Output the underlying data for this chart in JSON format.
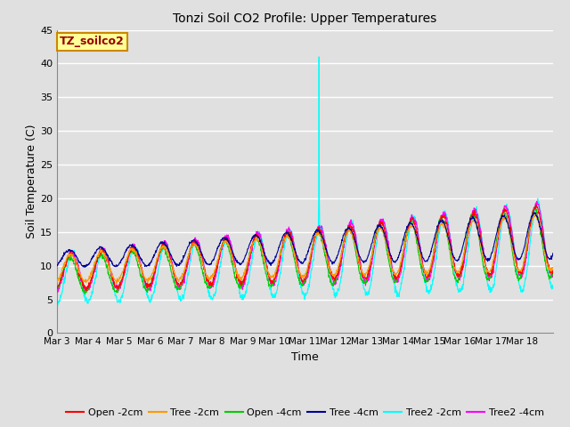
{
  "title": "Tonzi Soil CO2 Profile: Upper Temperatures",
  "xlabel": "Time",
  "ylabel": "Soil Temperature (C)",
  "ylim": [
    0,
    45
  ],
  "yticks": [
    0,
    5,
    10,
    15,
    20,
    25,
    30,
    35,
    40,
    45
  ],
  "x_labels": [
    "Mar 3",
    "Mar 4",
    "Mar 5",
    "Mar 6",
    "Mar 7",
    "Mar 8",
    "Mar 9",
    "Mar 10",
    "Mar 11",
    "Mar 12",
    "Mar 13",
    "Mar 14",
    "Mar 15",
    "Mar 16",
    "Mar 17",
    "Mar 18"
  ],
  "background_color": "#e0e0e0",
  "plot_bg_color": "#e0e0e0",
  "grid_color": "#ffffff",
  "series_colors": {
    "Open -2cm": "#ff0000",
    "Tree -2cm": "#ff9900",
    "Open -4cm": "#00cc00",
    "Tree -4cm": "#000099",
    "Tree2 -2cm": "#00ffff",
    "Tree2 -4cm": "#ff00ff"
  },
  "watermark_text": "TZ_soilco2",
  "watermark_bg": "#ffff99",
  "watermark_border": "#cc8800",
  "watermark_text_color": "#990000",
  "n_days": 16,
  "pts_per_day": 96,
  "spike_day": 8.45,
  "spike_value": 41.0
}
